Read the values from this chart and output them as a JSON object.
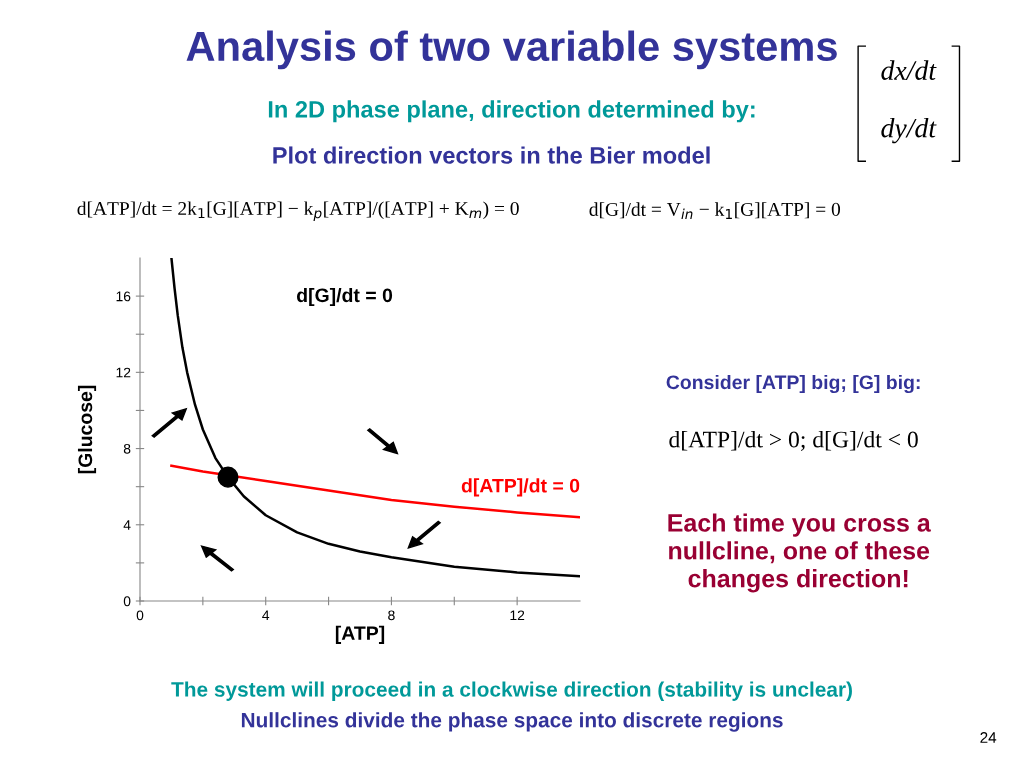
{
  "chart_data": {
    "type": "line",
    "title": "Analysis of two variable systems",
    "subtitle": "In 2D phase plane, direction determined by:",
    "xlabel": "[ATP]",
    "ylabel": "[Glucose]",
    "xlim": [
      0,
      14
    ],
    "ylim": [
      0,
      18
    ],
    "xticks": [
      0,
      {
        "value": 2,
        "label": null
      },
      4,
      {
        "value": 6,
        "label": null
      },
      8,
      {
        "value": 10,
        "label": null
      },
      12
    ],
    "yticks": [
      0,
      {
        "value": 2,
        "label": null
      },
      4,
      {
        "value": 6,
        "label": null
      },
      8,
      {
        "value": 10,
        "label": null
      },
      12,
      {
        "value": 14,
        "label": null
      },
      16
    ],
    "grid": false,
    "legend": false,
    "series": [
      {
        "name": "d[G]/dt = 0",
        "color": "#000000",
        "x": [
          1.0,
          1.1,
          1.2,
          1.35,
          1.5,
          1.75,
          2.0,
          2.4,
          2.8,
          3.3,
          4.0,
          5.0,
          6.0,
          7.0,
          8.0,
          10.0,
          12.0,
          14.0
        ],
        "values": [
          18.0,
          16.4,
          15.0,
          13.3,
          12.0,
          10.3,
          9.0,
          7.5,
          6.5,
          5.5,
          4.5,
          3.6,
          3.0,
          2.6,
          2.3,
          1.8,
          1.5,
          1.3
        ]
      },
      {
        "name": "d[ATP]/dt = 0",
        "color": "#ff0000",
        "x": [
          1.0,
          2.0,
          4.0,
          6.0,
          8.0,
          10.0,
          12.0,
          14.0
        ],
        "values": [
          7.1,
          6.8,
          6.3,
          5.8,
          5.3,
          4.95,
          4.65,
          4.4
        ]
      },
      {
        "color": "#000000",
        "type": "scatter",
        "marker": "circle",
        "x": [
          2.8
        ],
        "values": [
          6.5
        ]
      }
    ],
    "annotations": [
      "dx/dt",
      "dy/dt",
      "Plot direction vectors in the Bier model",
      "d[ATP]/dt = 2k$_{1}$[G][ATP] − k$_{p}$[ATP]/([ATP] + K$_{m}$) = 0",
      "d[G]/dt = V$_{in}$ − k$_{1}$[G][ATP] = 0",
      "Consider [ATP] big; [G] big:",
      "d[ATP]/dt > 0; d[G]/dt < 0",
      "Each time you cross a\nnullcline, one of these\nchanges direction!",
      "The system will proceed in a clockwise direction (stability is unclear)",
      "Nullclines divide the phase space into discrete regions",
      "24"
    ]
  }
}
